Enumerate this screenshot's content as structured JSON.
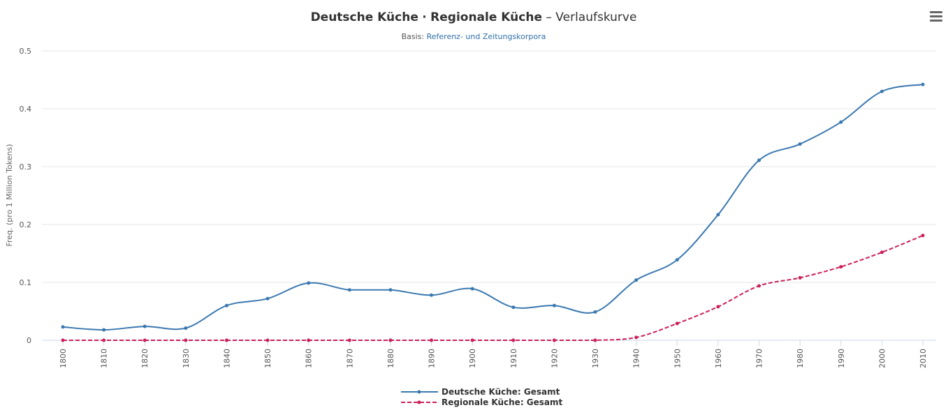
{
  "chart_data": {
    "type": "line",
    "title_bold_1": "Deutsche Küche",
    "title_sep": "·",
    "title_bold_2": "Regionale Küche",
    "title_rest": "– Verlaufskurve",
    "subtitle_prefix": "Basis:",
    "subtitle_link": "Referenz- und Zeitungskorpora",
    "ylabel": "Freq. (pro 1 Million Tokens)",
    "ylim": [
      0,
      0.5
    ],
    "yticks": [
      "0",
      "0.1",
      "0.2",
      "0.3",
      "0.4",
      "0.5"
    ],
    "grid": true,
    "legend_placement": "bottom-center",
    "x": [
      1800,
      1810,
      1820,
      1830,
      1840,
      1850,
      1860,
      1870,
      1880,
      1890,
      1900,
      1910,
      1920,
      1930,
      1940,
      1950,
      1960,
      1970,
      1980,
      1990,
      2000,
      2010
    ],
    "series": [
      {
        "name": "Deutsche Küche: Gesamt",
        "color": "#3a78b0",
        "dash": false,
        "values": [
          0.023,
          0.018,
          0.024,
          0.021,
          0.06,
          0.072,
          0.099,
          0.087,
          0.087,
          0.078,
          0.089,
          0.057,
          0.06,
          0.049,
          0.104,
          0.139,
          0.217,
          0.311,
          0.339,
          0.377,
          0.43,
          0.442
        ]
      },
      {
        "name": "Regionale Küche: Gesamt",
        "color": "#cc1f5a",
        "dash": true,
        "values": [
          0,
          0,
          0,
          0,
          0,
          0,
          0,
          0,
          0,
          0,
          0,
          0,
          0,
          0,
          0.005,
          0.029,
          0.058,
          0.094,
          0.108,
          0.127,
          0.152,
          0.181
        ]
      }
    ]
  },
  "menu_icon": "hamburger-menu-icon"
}
